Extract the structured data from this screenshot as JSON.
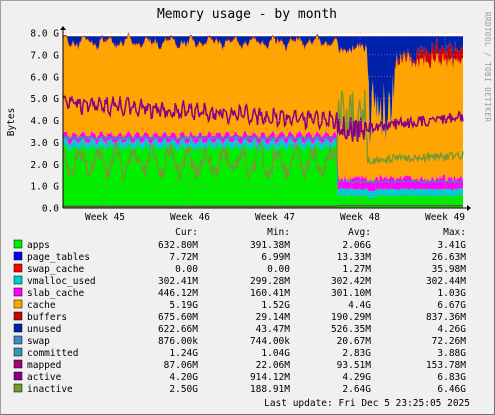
{
  "chart_data": {
    "type": "area",
    "title": "Memory usage - by month",
    "ylabel": "Bytes",
    "watermark": "RRDTOOL / TOBI OETIKER",
    "ylim": [
      0,
      8.0
    ],
    "y_ticks": [
      "0.0",
      "1.0 G",
      "2.0 G",
      "3.0 G",
      "4.0 G",
      "5.0 G",
      "6.0 G",
      "7.0 G",
      "8.0 G"
    ],
    "x_ticks": [
      "Week 45",
      "Week 46",
      "Week 47",
      "Week 48",
      "Week 49"
    ],
    "grid": true,
    "columns": [
      "Cur:",
      "Min:",
      "Avg:",
      "Max:"
    ],
    "series": [
      {
        "name": "apps",
        "color": "#00ee00",
        "cur": "632.80M",
        "min": "391.38M",
        "avg": "2.06G",
        "max": "3.41G"
      },
      {
        "name": "page_tables",
        "color": "#0000ff",
        "cur": "7.72M",
        "min": "6.99M",
        "avg": "13.33M",
        "max": "26.63M"
      },
      {
        "name": "swap_cache",
        "color": "#ff0000",
        "cur": "0.00",
        "min": "0.00",
        "avg": "1.27M",
        "max": "35.98M"
      },
      {
        "name": "vmalloc_used",
        "color": "#00cccc",
        "cur": "302.41M",
        "min": "299.28M",
        "avg": "302.42M",
        "max": "302.44M"
      },
      {
        "name": "slab_cache",
        "color": "#ff00ff",
        "cur": "446.12M",
        "min": "160.41M",
        "avg": "301.10M",
        "max": "1.03G"
      },
      {
        "name": "cache",
        "color": "#ffa500",
        "cur": "5.19G",
        "min": "1.52G",
        "avg": "4.4G",
        "max": "6.67G"
      },
      {
        "name": "buffers",
        "color": "#cc0000",
        "cur": "675.60M",
        "min": "29.14M",
        "avg": "190.29M",
        "max": "837.36M"
      },
      {
        "name": "unused",
        "color": "#0022aa",
        "cur": "622.66M",
        "min": "43.47M",
        "avg": "526.35M",
        "max": "4.26G"
      },
      {
        "name": "swap",
        "color": "#4488cc",
        "cur": "876.00k",
        "min": "744.00k",
        "avg": "20.67M",
        "max": "72.26M"
      },
      {
        "name": "committed",
        "color": "#3399aa",
        "cur": "1.24G",
        "min": "1.04G",
        "avg": "2.83G",
        "max": "3.88G"
      },
      {
        "name": "mapped",
        "color": "#aa0077",
        "cur": "87.06M",
        "min": "22.06M",
        "avg": "93.51M",
        "max": "153.78M"
      },
      {
        "name": "active",
        "color": "#880088",
        "cur": "4.20G",
        "min": "914.12M",
        "avg": "4.29G",
        "max": "6.83G"
      },
      {
        "name": "inactive",
        "color": "#779933",
        "cur": "2.50G",
        "min": "188.91M",
        "avg": "2.64G",
        "max": "6.46G"
      }
    ],
    "last_update": "Last update: Fri Dec  5 23:25:05 2025"
  }
}
